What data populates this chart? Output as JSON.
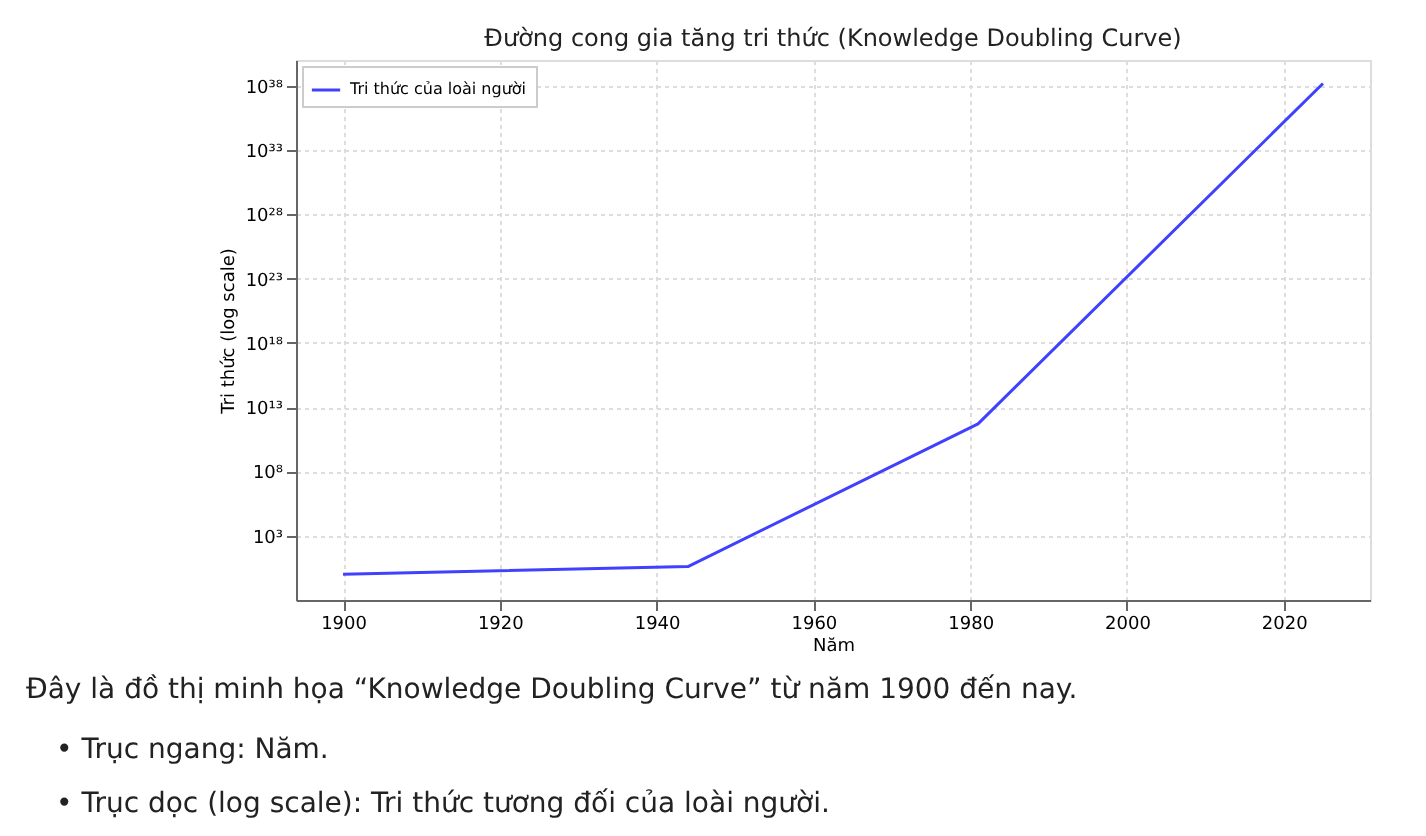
{
  "chart_data": {
    "type": "line",
    "title": "Đường cong gia tăng tri thức (Knowledge Doubling Curve)",
    "xlabel": "Năm",
    "ylabel": "Tri thức (log scale)",
    "x": [
      1900,
      1944,
      1981,
      2025
    ],
    "series": [
      {
        "name": "Tri thức của loài người",
        "color": "#4040ff",
        "values": [
          1,
          4,
          500000000000.0,
          1.5e+38
        ]
      }
    ],
    "log": "y",
    "xlim": [
      1894,
      2031
    ],
    "ylim": [
      0.01,
      1e+40
    ],
    "xticks": [
      1900,
      1920,
      1940,
      1960,
      1980,
      2000,
      2020
    ],
    "yticks": [
      {
        "value": 1000.0,
        "label": "10³"
      },
      {
        "value": 100000000.0,
        "label": "10⁸"
      },
      {
        "value": 10000000000000.0,
        "label": "10¹³"
      },
      {
        "value": 1e+18,
        "label": "10¹⁸"
      },
      {
        "value": 1e+23,
        "label": "10²³"
      },
      {
        "value": 1e+28,
        "label": "10²⁸"
      },
      {
        "value": 1e+33,
        "label": "10³³"
      },
      {
        "value": 1e+38,
        "label": "10³⁸"
      }
    ],
    "grid": true,
    "legend": "top left",
    "marker": "none",
    "line_style": "solid",
    "annotations": [
      "Đây là đồ thị minh họa “Knowledge Doubling Curve” từ năm 1900 đến nay.",
      "•   Trục ngang: Năm.",
      "•   Trục dọc (log scale): Tri thức tương đối của loài người."
    ]
  }
}
